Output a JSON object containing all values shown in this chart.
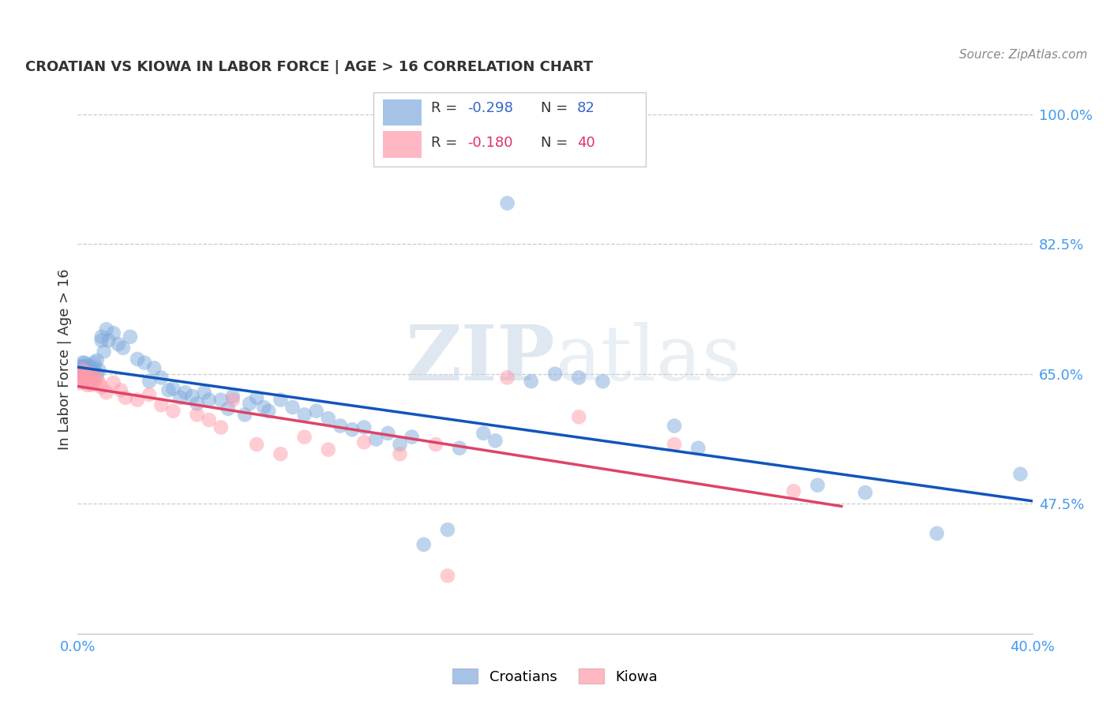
{
  "title": "CROATIAN VS KIOWA IN LABOR FORCE | AGE > 16 CORRELATION CHART",
  "source": "Source: ZipAtlas.com",
  "ylabel": "In Labor Force | Age > 16",
  "xlim": [
    0.0,
    0.4
  ],
  "ylim": [
    0.3,
    1.04
  ],
  "xticks": [
    0.0,
    0.1,
    0.2,
    0.3,
    0.4
  ],
  "xticklabels": [
    "0.0%",
    "",
    "",
    "",
    "40.0%"
  ],
  "ytick_positions": [
    0.475,
    0.65,
    0.825,
    1.0
  ],
  "ytick_labels": [
    "47.5%",
    "65.0%",
    "82.5%",
    "100.0%"
  ],
  "croatian_color": "#7faadd",
  "kiowa_color": "#ff9aaa",
  "trend_blue": "#1155bb",
  "trend_pink": "#dd4466",
  "watermark_text": "ZIPatlas",
  "croatian_x": [
    0.001,
    0.001,
    0.001,
    0.002,
    0.002,
    0.002,
    0.002,
    0.003,
    0.003,
    0.003,
    0.003,
    0.004,
    0.004,
    0.004,
    0.005,
    0.005,
    0.005,
    0.006,
    0.006,
    0.007,
    0.007,
    0.008,
    0.008,
    0.009,
    0.01,
    0.01,
    0.011,
    0.012,
    0.013,
    0.015,
    0.017,
    0.019,
    0.022,
    0.025,
    0.028,
    0.03,
    0.032,
    0.035,
    0.038,
    0.04,
    0.043,
    0.045,
    0.048,
    0.05,
    0.053,
    0.055,
    0.06,
    0.063,
    0.065,
    0.07,
    0.072,
    0.075,
    0.078,
    0.08,
    0.085,
    0.09,
    0.095,
    0.1,
    0.105,
    0.11,
    0.115,
    0.12,
    0.125,
    0.13,
    0.135,
    0.14,
    0.145,
    0.155,
    0.16,
    0.17,
    0.175,
    0.18,
    0.19,
    0.2,
    0.21,
    0.22,
    0.25,
    0.26,
    0.31,
    0.33,
    0.36,
    0.395
  ],
  "croatian_y": [
    0.655,
    0.66,
    0.65,
    0.655,
    0.66,
    0.645,
    0.665,
    0.655,
    0.66,
    0.65,
    0.665,
    0.658,
    0.65,
    0.662,
    0.655,
    0.648,
    0.66,
    0.655,
    0.64,
    0.658,
    0.665,
    0.65,
    0.668,
    0.655,
    0.695,
    0.7,
    0.68,
    0.71,
    0.695,
    0.705,
    0.69,
    0.685,
    0.7,
    0.67,
    0.665,
    0.64,
    0.658,
    0.645,
    0.628,
    0.63,
    0.618,
    0.625,
    0.62,
    0.61,
    0.625,
    0.615,
    0.615,
    0.603,
    0.62,
    0.595,
    0.61,
    0.618,
    0.605,
    0.6,
    0.615,
    0.605,
    0.595,
    0.6,
    0.59,
    0.58,
    0.575,
    0.578,
    0.562,
    0.57,
    0.555,
    0.565,
    0.42,
    0.44,
    0.55,
    0.57,
    0.56,
    0.88,
    0.64,
    0.65,
    0.645,
    0.64,
    0.58,
    0.55,
    0.5,
    0.49,
    0.435,
    0.515
  ],
  "kiowa_x": [
    0.001,
    0.001,
    0.002,
    0.002,
    0.003,
    0.003,
    0.004,
    0.004,
    0.005,
    0.005,
    0.006,
    0.006,
    0.007,
    0.008,
    0.009,
    0.01,
    0.012,
    0.015,
    0.018,
    0.02,
    0.025,
    0.03,
    0.035,
    0.04,
    0.05,
    0.055,
    0.06,
    0.065,
    0.075,
    0.085,
    0.095,
    0.105,
    0.12,
    0.135,
    0.15,
    0.155,
    0.18,
    0.21,
    0.25,
    0.3
  ],
  "kiowa_y": [
    0.648,
    0.638,
    0.655,
    0.645,
    0.638,
    0.652,
    0.645,
    0.635,
    0.65,
    0.64,
    0.635,
    0.648,
    0.638,
    0.645,
    0.638,
    0.632,
    0.625,
    0.638,
    0.628,
    0.618,
    0.615,
    0.622,
    0.608,
    0.6,
    0.595,
    0.588,
    0.578,
    0.615,
    0.555,
    0.542,
    0.565,
    0.548,
    0.558,
    0.542,
    0.555,
    0.378,
    0.645,
    0.592,
    0.555,
    0.492
  ]
}
